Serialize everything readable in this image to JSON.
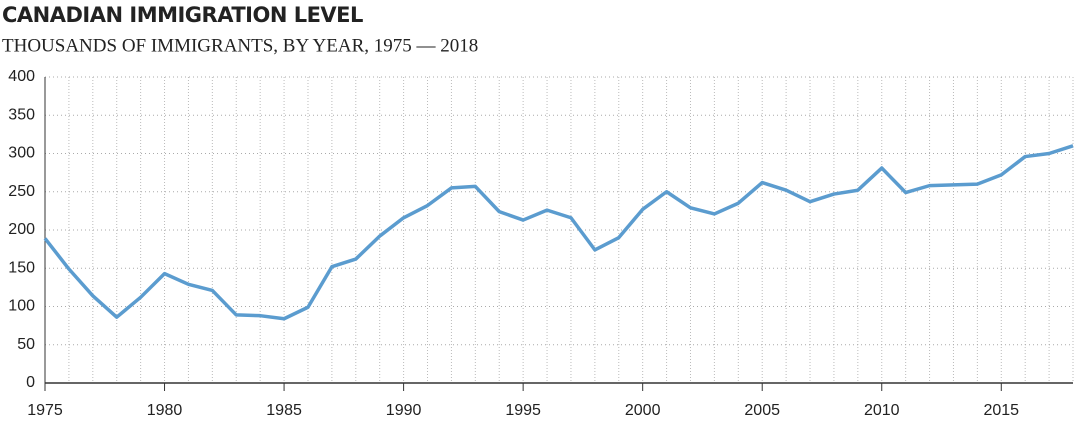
{
  "chart_data": {
    "type": "line",
    "title": "CANADIAN IMMIGRATION LEVEL",
    "subtitle": "THOUSANDS OF IMMIGRANTS, BY YEAR, 1975 — 2018",
    "x": [
      1975,
      1976,
      1977,
      1978,
      1979,
      1980,
      1981,
      1982,
      1983,
      1984,
      1985,
      1986,
      1987,
      1988,
      1989,
      1990,
      1991,
      1992,
      1993,
      1994,
      1995,
      1996,
      1997,
      1998,
      1999,
      2000,
      2001,
      2002,
      2003,
      2004,
      2005,
      2006,
      2007,
      2008,
      2009,
      2010,
      2011,
      2012,
      2013,
      2014,
      2015,
      2016,
      2017,
      2018
    ],
    "series": [
      {
        "name": "Immigrants",
        "color": "#5b9ccf",
        "values": [
          189,
          149,
          114,
          86,
          112,
          143,
          129,
          121,
          89,
          88,
          84,
          99,
          152,
          162,
          192,
          216,
          232,
          255,
          257,
          224,
          213,
          226,
          216,
          174,
          190,
          227,
          250,
          229,
          221,
          235,
          262,
          252,
          237,
          247,
          252,
          281,
          249,
          258,
          259,
          260,
          272,
          296,
          300,
          310
        ]
      }
    ],
    "xlim": [
      1975,
      2018
    ],
    "xticks": [
      1975,
      1980,
      1985,
      1990,
      1995,
      2000,
      2005,
      2010,
      2015
    ],
    "ylim": [
      0,
      400
    ],
    "yticks": [
      0,
      50,
      100,
      150,
      200,
      250,
      300,
      350,
      400
    ],
    "grid": true
  }
}
